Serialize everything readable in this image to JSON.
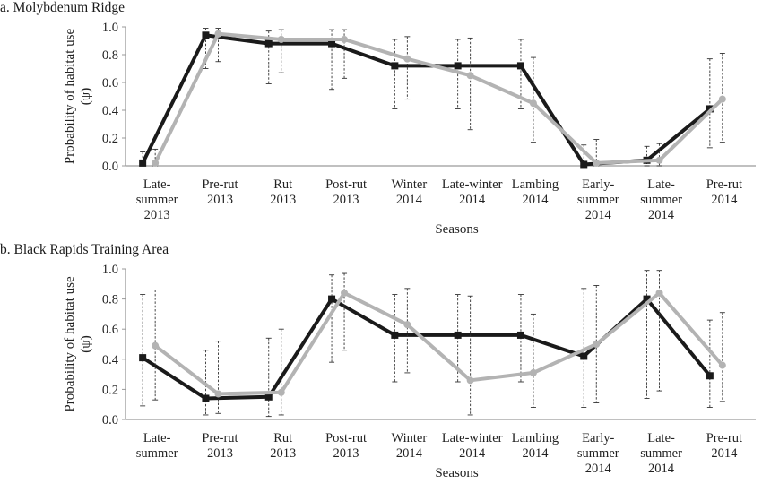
{
  "chart_data": [
    {
      "type": "line",
      "title": "a. Molybdenum Ridge",
      "xlabel": "Seasons",
      "ylabel": "Probability of habitat use (ψ)",
      "ylim": [
        0,
        1.0
      ],
      "yticks": [
        "0.0",
        "0.2",
        "0.4",
        "0.6",
        "0.8",
        "1.0"
      ],
      "grid": false,
      "legend": null,
      "categories": [
        [
          "Late-",
          "summer",
          "2013"
        ],
        [
          "Pre-rut",
          "2013"
        ],
        [
          "Rut",
          "2013"
        ],
        [
          "Post-rut",
          "2013"
        ],
        [
          "Winter",
          "2014"
        ],
        [
          "Late-winter",
          "2014"
        ],
        [
          "Lambing",
          "2014"
        ],
        [
          "Early-",
          "summer",
          "2014"
        ],
        [
          "Late-",
          "summer",
          "2014"
        ],
        [
          "Pre-rut",
          "2014"
        ]
      ],
      "series": [
        {
          "name": "black series",
          "color": "#1a1a1a",
          "marker": "square",
          "values": [
            0.02,
            0.94,
            0.88,
            0.88,
            0.72,
            0.72,
            0.72,
            0.01,
            0.04,
            0.41
          ],
          "lower": [
            0.0,
            0.7,
            0.59,
            0.55,
            0.41,
            0.41,
            0.41,
            0.0,
            0.0,
            0.13
          ],
          "upper": [
            0.1,
            0.99,
            0.97,
            0.98,
            0.91,
            0.91,
            0.91,
            0.15,
            0.14,
            0.77
          ]
        },
        {
          "name": "gray series",
          "color": "#b3b3b3",
          "marker": "circle",
          "values": [
            0.02,
            0.95,
            0.91,
            0.91,
            0.77,
            0.65,
            0.45,
            0.02,
            0.04,
            0.48
          ],
          "lower": [
            0.0,
            0.75,
            0.67,
            0.63,
            0.48,
            0.26,
            0.17,
            0.0,
            0.0,
            0.17
          ],
          "upper": [
            0.12,
            0.99,
            0.98,
            0.98,
            0.93,
            0.92,
            0.78,
            0.19,
            0.16,
            0.81
          ]
        }
      ]
    },
    {
      "type": "line",
      "title": "b. Black Rapids Training Area",
      "xlabel": "Seasons",
      "ylabel": "Probability of habitat use (ψ)",
      "ylim": [
        0,
        1.0
      ],
      "yticks": [
        "0.0",
        "0.2",
        "0.4",
        "0.6",
        "0.8",
        "1.0"
      ],
      "grid": false,
      "legend": null,
      "categories": [
        [
          "Late-",
          "summer"
        ],
        [
          "Pre-rut",
          "2013"
        ],
        [
          "Rut",
          "2013"
        ],
        [
          "Post-rut",
          "2013"
        ],
        [
          "Winter",
          "2014"
        ],
        [
          "Late-winter",
          "2014"
        ],
        [
          "Lambing",
          "2014"
        ],
        [
          "Early-",
          "summer",
          "2014"
        ],
        [
          "Late-",
          "summer",
          "2014"
        ],
        [
          "Pre-rut",
          "2014"
        ]
      ],
      "series": [
        {
          "name": "black series",
          "color": "#1a1a1a",
          "marker": "square",
          "values": [
            0.41,
            0.14,
            0.15,
            0.8,
            0.56,
            0.56,
            0.56,
            0.42,
            0.8,
            0.29
          ],
          "lower": [
            0.09,
            0.03,
            0.02,
            0.38,
            0.25,
            0.25,
            0.25,
            0.08,
            0.14,
            0.08
          ],
          "upper": [
            0.83,
            0.46,
            0.54,
            0.96,
            0.83,
            0.83,
            0.83,
            0.87,
            0.99,
            0.66
          ]
        },
        {
          "name": "gray series",
          "color": "#b3b3b3",
          "marker": "circle",
          "values": [
            0.49,
            0.17,
            0.18,
            0.84,
            0.63,
            0.26,
            0.31,
            0.5,
            0.84,
            0.36
          ],
          "lower": [
            0.13,
            0.04,
            0.03,
            0.46,
            0.31,
            0.03,
            0.08,
            0.11,
            0.19,
            0.12
          ],
          "upper": [
            0.86,
            0.52,
            0.6,
            0.97,
            0.87,
            0.82,
            0.7,
            0.89,
            0.99,
            0.71
          ]
        }
      ]
    }
  ],
  "panels": {
    "a": {
      "title": "a. Molybdenum Ridge"
    },
    "b": {
      "title": "b. Black Rapids Training Area"
    }
  }
}
